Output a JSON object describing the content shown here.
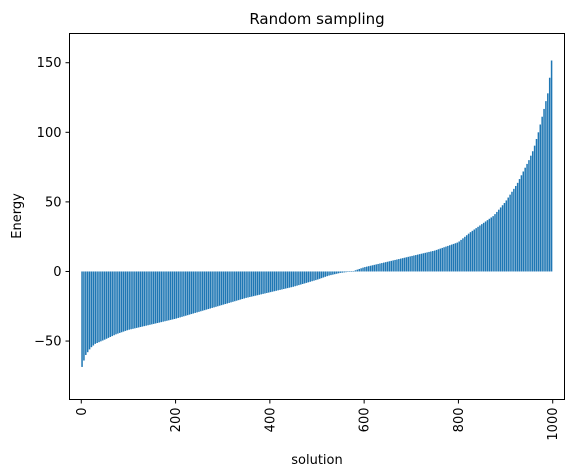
{
  "chart_data": {
    "type": "bar",
    "title": "Random sampling",
    "xlabel": "solution",
    "ylabel": "Energy",
    "xlim": [
      -25,
      1025
    ],
    "ylim": [
      -92,
      171
    ],
    "xticks": [
      0,
      200,
      400,
      600,
      800,
      1000
    ],
    "xtick_labels": [
      "0",
      "200",
      "400",
      "600",
      "800",
      "1000"
    ],
    "xtick_rotation": 90,
    "yticks": [
      -50,
      0,
      50,
      100,
      150
    ],
    "ytick_labels": [
      "−50",
      "0",
      "50",
      "100",
      "150"
    ],
    "grid": false,
    "bar_color": "#1f77b4",
    "n_bars": 1000,
    "series": [
      {
        "x": [
          0,
          5,
          10,
          20,
          30,
          50,
          75,
          100,
          150,
          200,
          250,
          300,
          350,
          400,
          450,
          500,
          525,
          550,
          575,
          600,
          650,
          700,
          750,
          800,
          825,
          850,
          875,
          900,
          925,
          950,
          960,
          970,
          980,
          990,
          995,
          1000
        ],
        "values": [
          -71,
          -65,
          -60,
          -55,
          -52,
          -49,
          -45,
          -42,
          -38,
          -34,
          -29,
          -24,
          -19,
          -15,
          -11,
          -6,
          -3,
          -1,
          0,
          3,
          7,
          11,
          15,
          21,
          28,
          34,
          40,
          50,
          63,
          80,
          88,
          100,
          114,
          128,
          142,
          158
        ]
      }
    ]
  }
}
